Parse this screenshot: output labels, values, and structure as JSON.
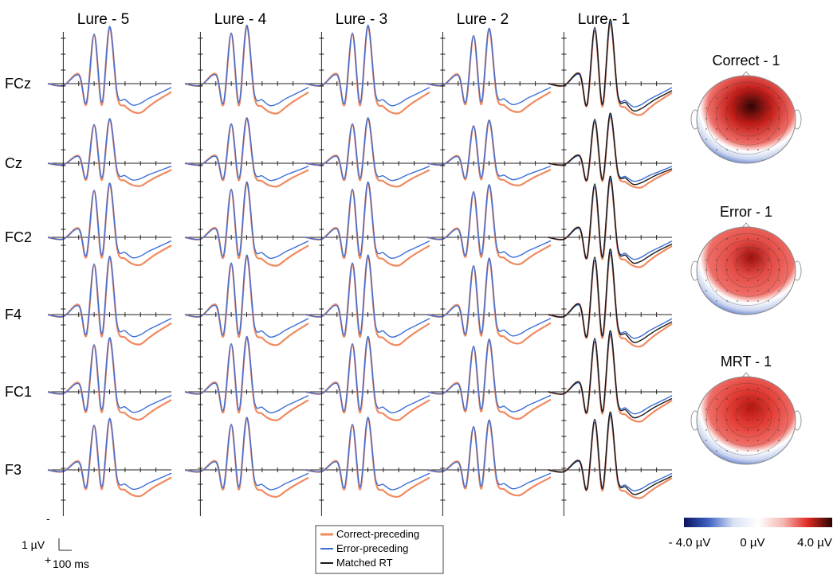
{
  "chart_data": {
    "type": "line",
    "columns": [
      "Lure - 5",
      "Lure - 4",
      "Lure - 3",
      "Lure - 2",
      "Lure - 1"
    ],
    "rows": [
      "FCz",
      "Cz",
      "FC2",
      "F4",
      "FC1",
      "F3"
    ],
    "polarity": "negative up",
    "grid": false,
    "x_unit": "ms",
    "y_unit": "µV",
    "x_points": [
      -100,
      0,
      100,
      150,
      200,
      250,
      300,
      350,
      400,
      450,
      500,
      550,
      600,
      700
    ],
    "series": [
      {
        "name": "Correct-preceding",
        "color": "#f08a60",
        "panels": "all",
        "values": [
          0.0,
          0.2,
          -1.0,
          2.2,
          -5.2,
          2.3,
          -6.0,
          1.4,
          2.4,
          3.0,
          3.1,
          2.5,
          1.9,
          0.9
        ]
      },
      {
        "name": "Error-preceding",
        "color": "#3d6fd6",
        "panels": "all",
        "values": [
          0.0,
          0.2,
          -0.9,
          2.0,
          -5.3,
          2.0,
          -6.1,
          1.1,
          1.7,
          2.3,
          2.1,
          1.6,
          1.2,
          0.4
        ]
      },
      {
        "name": "Matched RT",
        "color": "#1a1a1a",
        "panels": "Lure - 1 only",
        "values": [
          0.0,
          0.2,
          -1.0,
          2.1,
          -5.6,
          2.1,
          -6.4,
          1.2,
          1.9,
          2.7,
          2.5,
          2.0,
          1.5,
          0.7
        ]
      }
    ],
    "topomaps": [
      {
        "title": "Correct - 1"
      },
      {
        "title": "Error - 1"
      },
      {
        "title": "MRT - 1"
      }
    ],
    "colorbar": {
      "labels": [
        "- 4.0 µV",
        "0 µV",
        "4.0 µV"
      ],
      "range": [
        -4.0,
        4.0
      ],
      "colors": [
        "#0a1460",
        "#3f63c2",
        "#d8e1f4",
        "#ffffff",
        "#f5b9b4",
        "#e02a22",
        "#2a0303"
      ]
    },
    "legend": {
      "position": "bottom-center",
      "items": [
        "Correct-preceding",
        "Error-preceding",
        "Matched RT"
      ]
    },
    "scale_bar": {
      "amplitude_label": "1 µV",
      "time_label": "100 ms",
      "minus_sign": "-",
      "plus_sign": "+"
    }
  }
}
